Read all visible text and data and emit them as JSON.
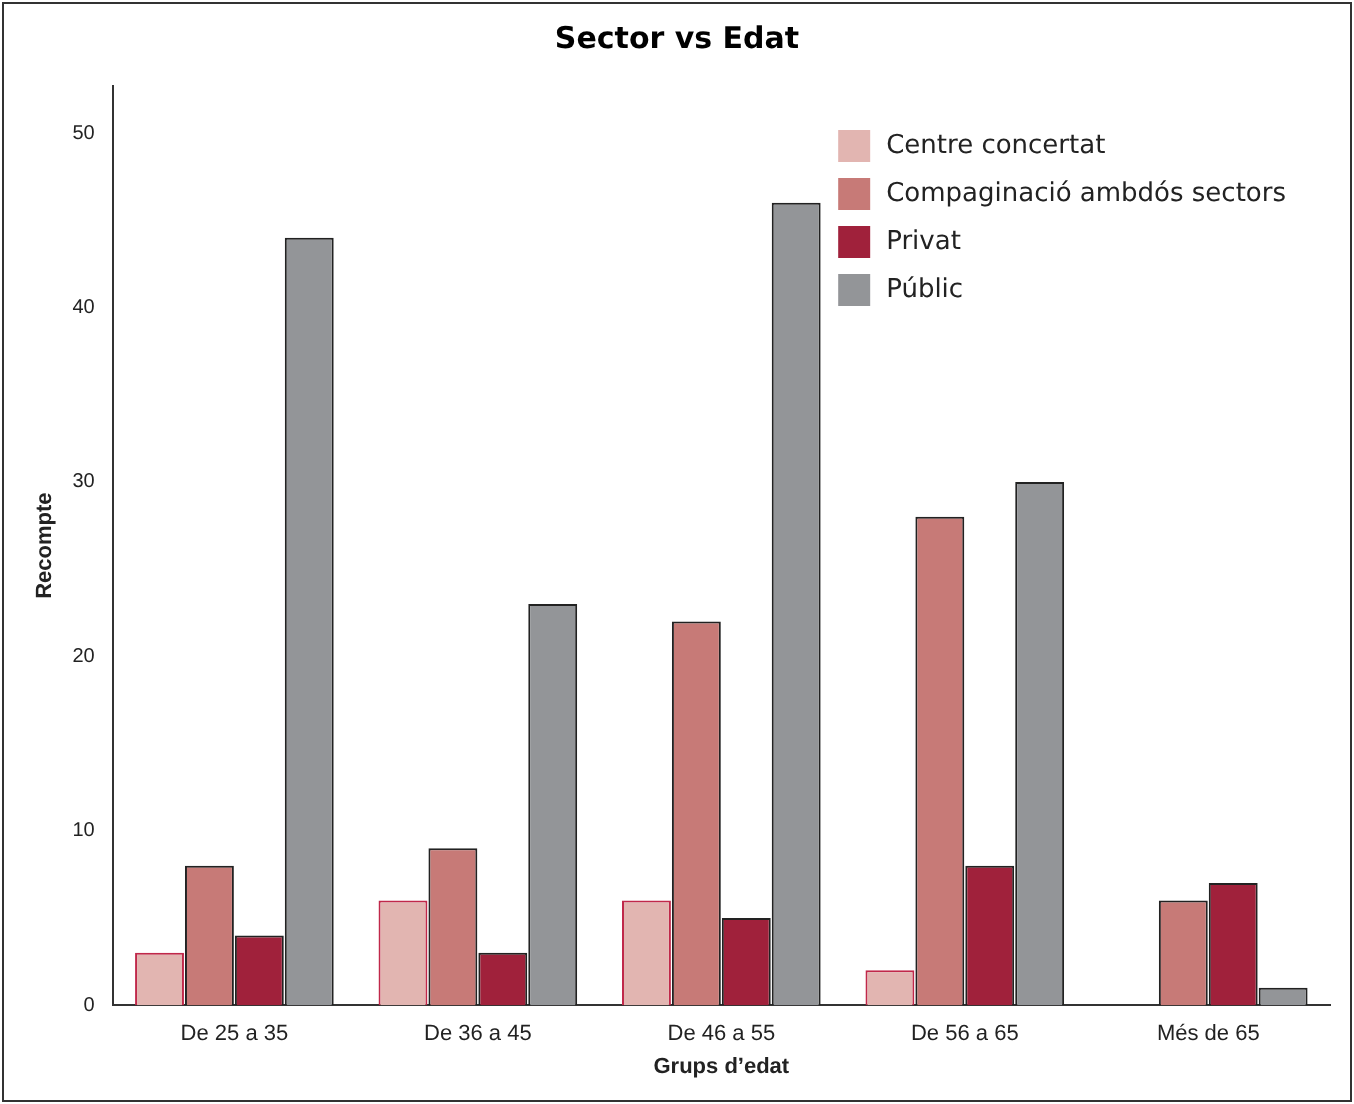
{
  "chart_data": {
    "type": "bar",
    "title": "Sector vs Edat",
    "xlabel": "Grups d’edat",
    "ylabel": "Recompte",
    "categories": [
      "De 25 a 35",
      "De 36 a 45",
      "De 46 a 55",
      "De 56 a 65",
      "Més de 65"
    ],
    "series": [
      {
        "name": "Centre concertat",
        "color": "#e2b5b1",
        "values": [
          3,
          6,
          6,
          2,
          null
        ]
      },
      {
        "name": "Compaginació ambdós sectors",
        "color": "#c77a77",
        "values": [
          8,
          9,
          22,
          28,
          6
        ]
      },
      {
        "name": "Privat",
        "color": "#a0213b",
        "values": [
          4,
          3,
          5,
          8,
          7
        ]
      },
      {
        "name": "Públic",
        "color": "#939598",
        "values": [
          44,
          23,
          46,
          30,
          1
        ]
      }
    ],
    "ylim": [
      0,
      52.7
    ],
    "yticks": [
      0,
      10,
      20,
      30,
      40,
      50
    ],
    "grid": false,
    "legend": "top right"
  }
}
